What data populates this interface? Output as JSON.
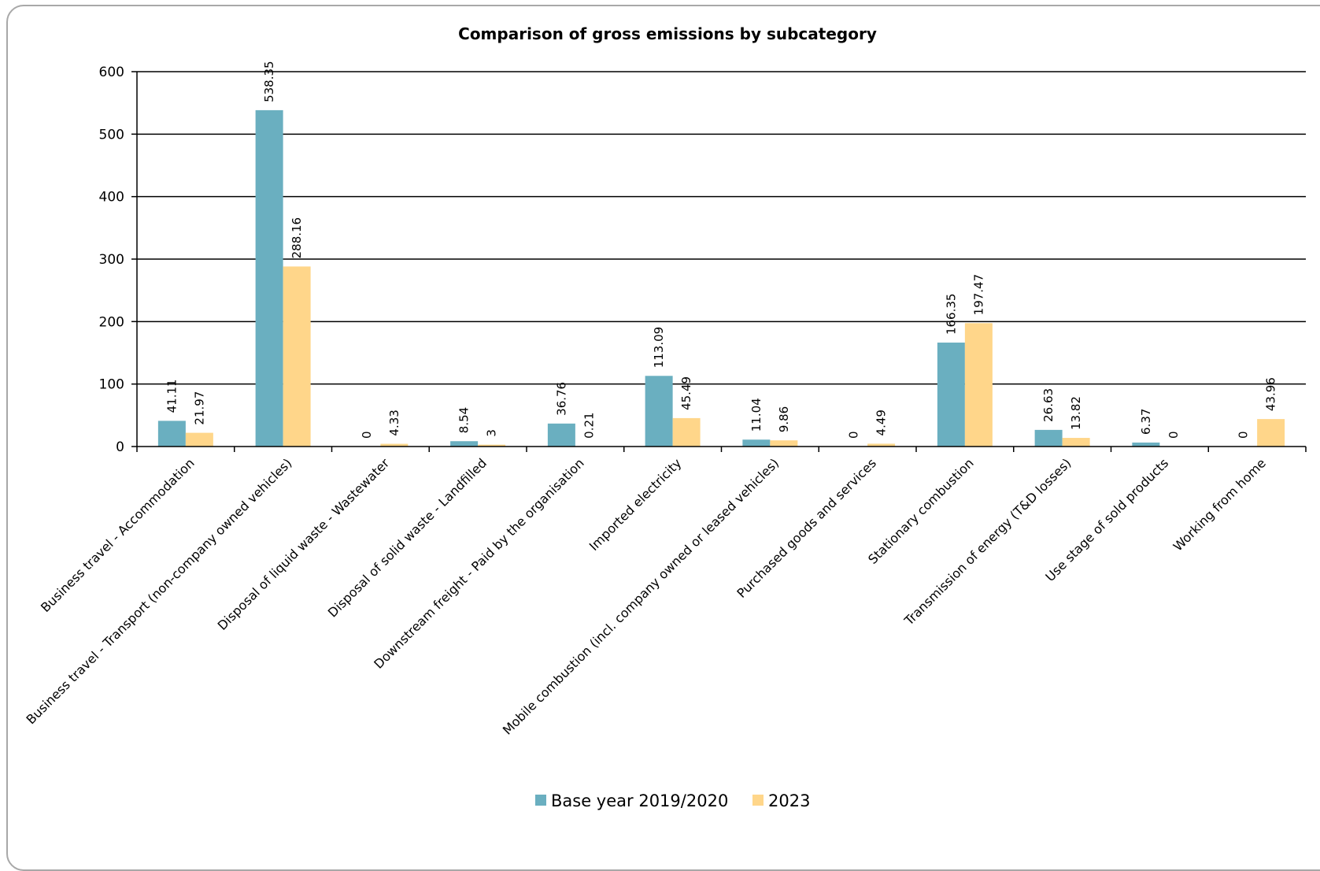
{
  "chart_data": {
    "type": "bar",
    "title": "Comparison of gross emissions by subcategory",
    "xlabel": "",
    "ylabel": "",
    "ylim": [
      0,
      600
    ],
    "yticks": [
      0,
      100,
      200,
      300,
      400,
      500,
      600
    ],
    "grid": true,
    "legend_position": "bottom",
    "categories": [
      "Business travel - Accommodation",
      "Business travel - Transport (non-company owned vehicles)",
      "Disposal of liquid waste - Wastewater",
      "Disposal of solid waste - Landfilled",
      "Downstream freight - Paid by the organisation",
      "Imported electricity",
      "Mobile combustion (incl. company owned or leased vehicles)",
      "Purchased goods and services",
      "Stationary combustion",
      "Transmission of energy (T&D losses)",
      "Use stage of sold products",
      "Working from home"
    ],
    "series": [
      {
        "name": "Base year 2019/2020",
        "color": "#6AAFC0",
        "values": [
          41.11,
          538.35,
          0,
          8.54,
          36.76,
          113.09,
          11.04,
          0,
          166.35,
          26.63,
          6.37,
          0
        ],
        "labels": [
          "41.11",
          "538.35",
          "0",
          "8.54",
          "36.76",
          "113.09",
          "11.04",
          "0",
          "166.35",
          "26.63",
          "6.37",
          "0"
        ]
      },
      {
        "name": "2023",
        "color": "#FFD68A",
        "values": [
          21.97,
          288.16,
          4.33,
          3,
          0.21,
          45.49,
          9.86,
          4.49,
          197.47,
          13.82,
          0,
          43.96
        ],
        "labels": [
          "21.97",
          "288.16",
          "4.33",
          "3",
          "0.21",
          "45.49",
          "9.86",
          "4.49",
          "197.47",
          "13.82",
          "0",
          "43.96"
        ]
      }
    ]
  }
}
